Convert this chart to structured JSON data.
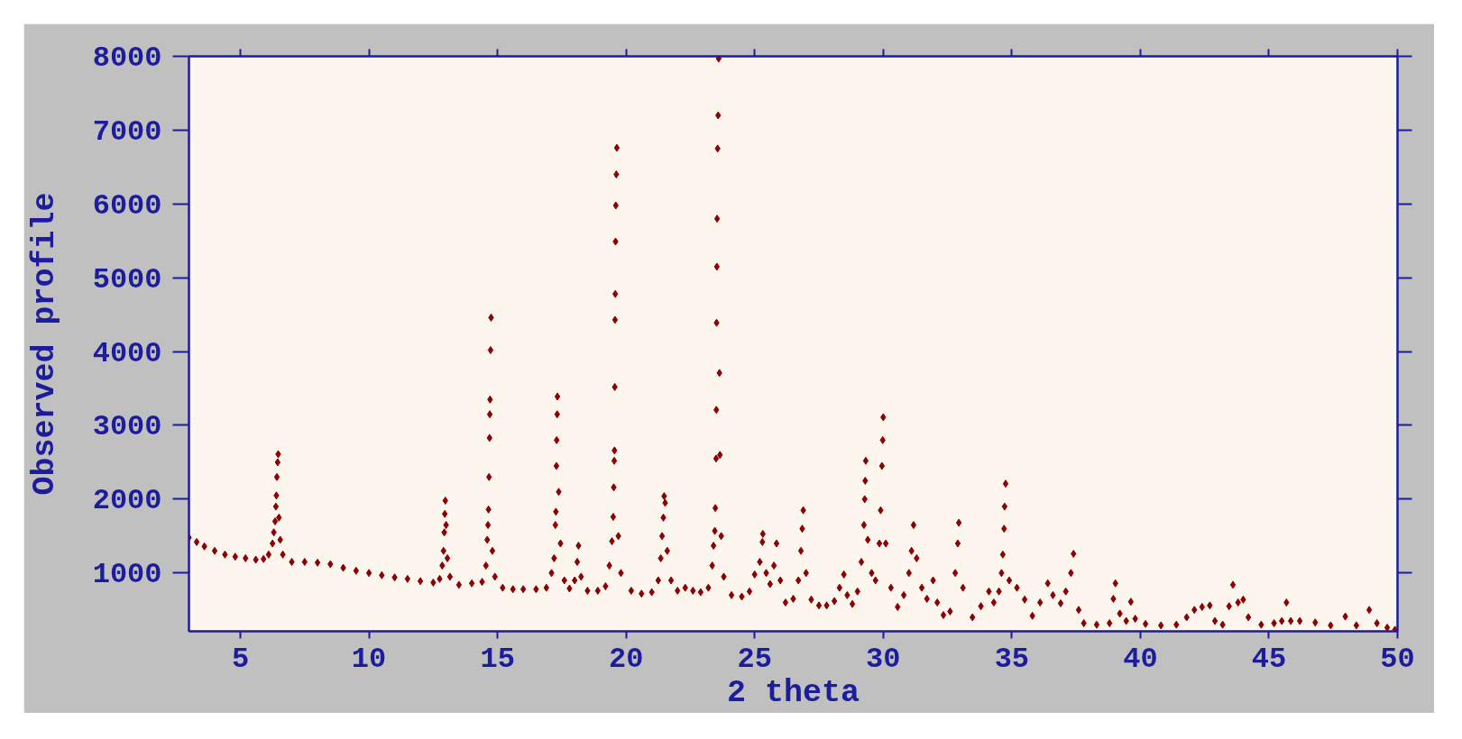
{
  "chart_data": {
    "type": "scatter",
    "xlabel": "2 theta",
    "ylabel": "Observed profile",
    "xlim": [
      3,
      50
    ],
    "ylim": [
      210,
      8000
    ],
    "xticks": [
      5,
      10,
      15,
      20,
      25,
      30,
      35,
      40,
      45,
      50
    ],
    "yticks": [
      1000,
      2000,
      3000,
      4000,
      5000,
      6000,
      7000,
      8000
    ],
    "grid": false,
    "marker": "diamond",
    "color": "#8b0000",
    "x": [
      3.0,
      3.3,
      3.6,
      4.0,
      4.4,
      4.8,
      5.2,
      5.6,
      5.9,
      6.1,
      6.25,
      6.3,
      6.35,
      6.38,
      6.4,
      6.42,
      6.45,
      6.47,
      6.5,
      6.55,
      6.65,
      7.0,
      7.5,
      8.0,
      8.5,
      9.0,
      9.5,
      10.0,
      10.5,
      11.0,
      11.5,
      12.0,
      12.5,
      12.75,
      12.85,
      12.9,
      12.93,
      12.95,
      12.97,
      13.0,
      13.05,
      13.15,
      13.5,
      14.0,
      14.4,
      14.55,
      14.6,
      14.63,
      14.65,
      14.67,
      14.69,
      14.7,
      14.71,
      14.73,
      14.75,
      14.8,
      14.9,
      15.2,
      15.6,
      16.0,
      16.5,
      16.9,
      17.1,
      17.2,
      17.25,
      17.27,
      17.29,
      17.3,
      17.32,
      17.33,
      17.38,
      17.45,
      17.6,
      17.8,
      18.0,
      18.1,
      18.15,
      18.25,
      18.5,
      18.9,
      19.2,
      19.35,
      19.45,
      19.5,
      19.52,
      19.54,
      19.55,
      19.56,
      19.57,
      19.58,
      19.59,
      19.6,
      19.62,
      19.64,
      19.7,
      19.8,
      20.2,
      20.6,
      21.0,
      21.25,
      21.35,
      21.4,
      21.45,
      21.48,
      21.52,
      21.6,
      21.75,
      22.0,
      22.3,
      22.6,
      22.9,
      23.2,
      23.35,
      23.4,
      23.45,
      23.47,
      23.5,
      23.51,
      23.52,
      23.53,
      23.54,
      23.56,
      23.58,
      23.6,
      23.63,
      23.65,
      23.7,
      23.8,
      24.1,
      24.5,
      24.8,
      25.0,
      25.2,
      25.3,
      25.32,
      25.45,
      25.6,
      25.75,
      25.85,
      26.0,
      26.2,
      26.5,
      26.7,
      26.8,
      26.85,
      26.89,
      27.0,
      27.2,
      27.5,
      27.8,
      28.1,
      28.3,
      28.47,
      28.6,
      28.8,
      29.0,
      29.15,
      29.25,
      29.28,
      29.3,
      29.32,
      29.4,
      29.55,
      29.7,
      29.85,
      29.9,
      29.95,
      29.98,
      30.0,
      30.1,
      30.3,
      30.56,
      30.8,
      31.0,
      31.1,
      31.18,
      31.3,
      31.5,
      31.7,
      31.94,
      32.1,
      32.34,
      32.6,
      32.8,
      32.9,
      32.94,
      33.1,
      33.47,
      33.8,
      34.11,
      34.3,
      34.5,
      34.6,
      34.65,
      34.7,
      34.72,
      34.76,
      34.9,
      35.2,
      35.5,
      35.8,
      36.1,
      36.4,
      36.6,
      36.9,
      37.1,
      37.3,
      37.4,
      37.6,
      37.8,
      38.3,
      38.8,
      38.95,
      39.03,
      39.2,
      39.45,
      39.63,
      39.8,
      40.2,
      40.8,
      41.4,
      41.8,
      42.1,
      42.4,
      42.7,
      42.9,
      43.2,
      43.45,
      43.6,
      43.8,
      44.0,
      44.2,
      44.7,
      45.2,
      45.5,
      45.68,
      45.85,
      46.2,
      46.8,
      47.4,
      47.97,
      48.4,
      48.9,
      49.2,
      49.6,
      49.9
    ],
    "values": [
      1480,
      1420,
      1360,
      1300,
      1250,
      1220,
      1200,
      1180,
      1190,
      1250,
      1400,
      1550,
      1700,
      1900,
      2050,
      2300,
      2500,
      2610,
      1750,
      1450,
      1250,
      1150,
      1150,
      1140,
      1120,
      1070,
      1030,
      1000,
      970,
      940,
      920,
      890,
      870,
      920,
      1100,
      1300,
      1550,
      1800,
      1980,
      1650,
      1200,
      950,
      840,
      860,
      880,
      1100,
      1450,
      1650,
      1860,
      2300,
      2830,
      3150,
      3350,
      4020,
      4460,
      1300,
      950,
      800,
      780,
      780,
      780,
      800,
      1000,
      1200,
      1650,
      1830,
      2450,
      2800,
      3150,
      3390,
      2100,
      1400,
      900,
      790,
      900,
      1150,
      1370,
      950,
      760,
      760,
      820,
      1100,
      1430,
      1760,
      2160,
      2520,
      2660,
      3520,
      4430,
      4780,
      5490,
      5980,
      6400,
      6760,
      1500,
      1000,
      760,
      720,
      740,
      900,
      1200,
      1500,
      1750,
      2040,
      1950,
      1300,
      900,
      760,
      800,
      760,
      740,
      800,
      1100,
      1370,
      1570,
      1880,
      2550,
      3210,
      4390,
      5150,
      5800,
      6750,
      7200,
      7970,
      3710,
      2600,
      1500,
      950,
      700,
      680,
      750,
      980,
      1150,
      1420,
      1530,
      1000,
      850,
      1100,
      1400,
      900,
      600,
      650,
      900,
      1300,
      1600,
      1850,
      1000,
      640,
      560,
      560,
      620,
      800,
      980,
      700,
      580,
      750,
      1150,
      1650,
      2000,
      2250,
      2520,
      1450,
      1000,
      900,
      1400,
      1850,
      2450,
      2800,
      3110,
      1400,
      800,
      540,
      700,
      1000,
      1300,
      1650,
      1200,
      800,
      650,
      900,
      600,
      430,
      480,
      1000,
      1400,
      1680,
      800,
      400,
      550,
      750,
      600,
      750,
      1000,
      1250,
      1600,
      1900,
      2210,
      900,
      800,
      640,
      420,
      600,
      860,
      700,
      590,
      750,
      1000,
      1260,
      500,
      320,
      300,
      320,
      650,
      860,
      450,
      350,
      610,
      380,
      310,
      290,
      300,
      400,
      500,
      540,
      560,
      350,
      300,
      550,
      840,
      600,
      640,
      400,
      300,
      320,
      350,
      600,
      350,
      350,
      330,
      290,
      410,
      290,
      500,
      320,
      260,
      230
    ]
  }
}
